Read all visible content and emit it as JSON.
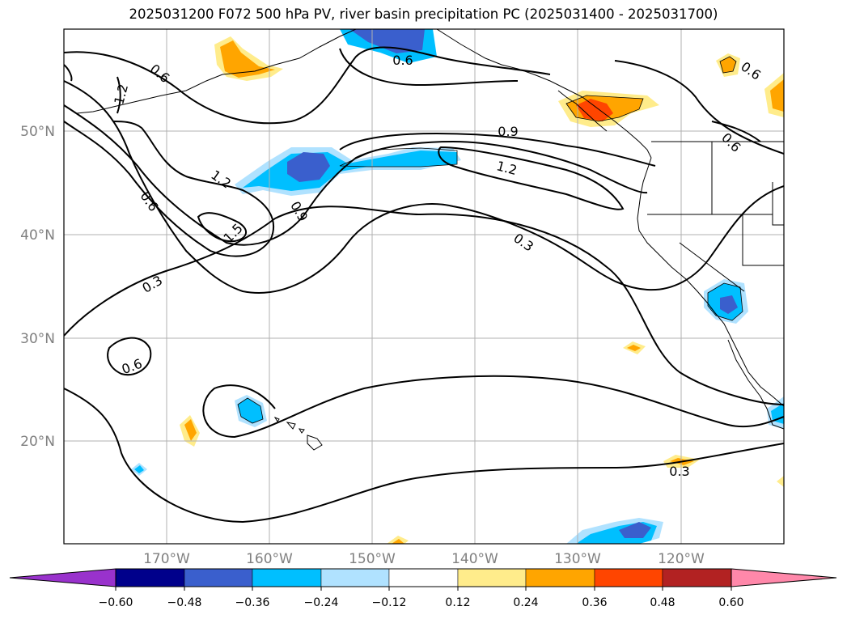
{
  "title": "2025031200 F072 500 hPa PV, river basin precipitation PC (2025031400 - 2025031700)",
  "lat_labels": [
    "50°N",
    "40°N",
    "30°N",
    "20°N"
  ],
  "lon_labels": [
    "170°W",
    "160°W",
    "150°W",
    "140°W",
    "130°W",
    "120°W"
  ],
  "contour_labels": [
    "1.2",
    "0.6",
    "0.6",
    "0.9",
    "1.2",
    "1.2",
    "0.9",
    "0.6",
    "1.5",
    "0.3",
    "0.3",
    "0.6",
    "0.3",
    "0.6",
    "0.6"
  ],
  "colorbar": {
    "tick_labels": [
      "−0.60",
      "−0.48",
      "−0.36",
      "−0.24",
      "−0.12",
      "0.12",
      "0.24",
      "0.36",
      "0.48",
      "0.60"
    ],
    "colors": [
      "#9932cc",
      "#00008b",
      "#3a5fcd",
      "#00bfff",
      "#b0e2ff",
      "#ffffff",
      "#ffec8b",
      "#ffa500",
      "#ff4500",
      "#b22222",
      "#ff88aa"
    ]
  },
  "colors": {
    "neg_strong": "#3a5fcd",
    "neg_mid": "#00bfff",
    "neg_weak": "#b0e2ff",
    "pos_weak": "#ffec8b",
    "pos_mid": "#ffa500",
    "pos_strong": "#ff4500",
    "pos_stronger": "#b22222",
    "gridline": "#b0b0b0",
    "contour": "#000000"
  }
}
